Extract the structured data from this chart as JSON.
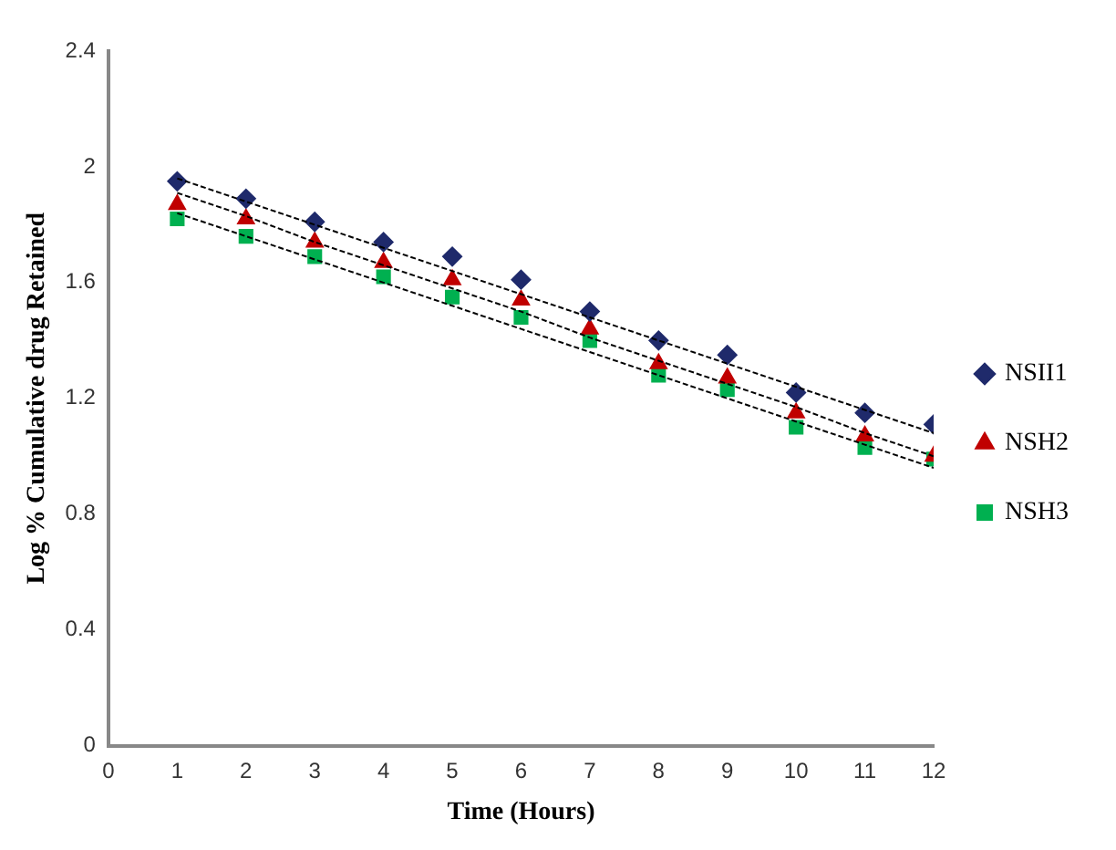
{
  "chart_data": {
    "type": "scatter",
    "xlabel": "Time (Hours)",
    "ylabel": "Log % Cumulative drug Retained",
    "x": [
      1,
      2,
      3,
      4,
      5,
      6,
      7,
      8,
      9,
      10,
      11,
      12
    ],
    "series": [
      {
        "name": "NSII1",
        "color": "#1f2a6b",
        "marker": "diamond",
        "values": [
          1.95,
          1.89,
          1.81,
          1.74,
          1.69,
          1.61,
          1.5,
          1.4,
          1.35,
          1.22,
          1.15,
          1.11
        ]
      },
      {
        "name": "NSH2",
        "color": "#c00000",
        "marker": "triangle",
        "values": [
          1.87,
          1.82,
          1.74,
          1.67,
          1.61,
          1.54,
          1.44,
          1.32,
          1.27,
          1.15,
          1.07,
          1.0
        ]
      },
      {
        "name": "NSH3",
        "color": "#00b050",
        "marker": "square",
        "values": [
          1.82,
          1.76,
          1.69,
          1.62,
          1.55,
          1.48,
          1.4,
          1.28,
          1.23,
          1.1,
          1.03,
          0.99
        ]
      },
      {
        "type": "line",
        "color": "#000000",
        "line_style": "dashed",
        "marker": "none",
        "values": [
          1.96,
          1.88,
          1.8,
          1.72,
          1.64,
          1.56,
          1.48,
          1.4,
          1.32,
          1.24,
          1.16,
          1.08
        ]
      },
      {
        "type": "line",
        "color": "#000000",
        "line_style": "dashed",
        "marker": "none",
        "values": [
          1.91,
          1.83,
          1.74,
          1.66,
          1.58,
          1.5,
          1.41,
          1.33,
          1.25,
          1.17,
          1.08,
          1.0
        ]
      },
      {
        "type": "line",
        "color": "#000000",
        "line_style": "dashed",
        "marker": "none",
        "values": [
          1.84,
          1.76,
          1.68,
          1.6,
          1.52,
          1.44,
          1.36,
          1.28,
          1.2,
          1.12,
          1.04,
          0.96
        ]
      }
    ],
    "xlim": [
      0,
      12
    ],
    "xticks": [
      0,
      1,
      2,
      3,
      4,
      5,
      6,
      7,
      8,
      9,
      10,
      11,
      12
    ],
    "ylim": [
      0,
      2.4
    ],
    "yticks": [
      0,
      0.4,
      0.8,
      1.2,
      1.6,
      2,
      2.4
    ],
    "grid": false,
    "legend": "right"
  }
}
